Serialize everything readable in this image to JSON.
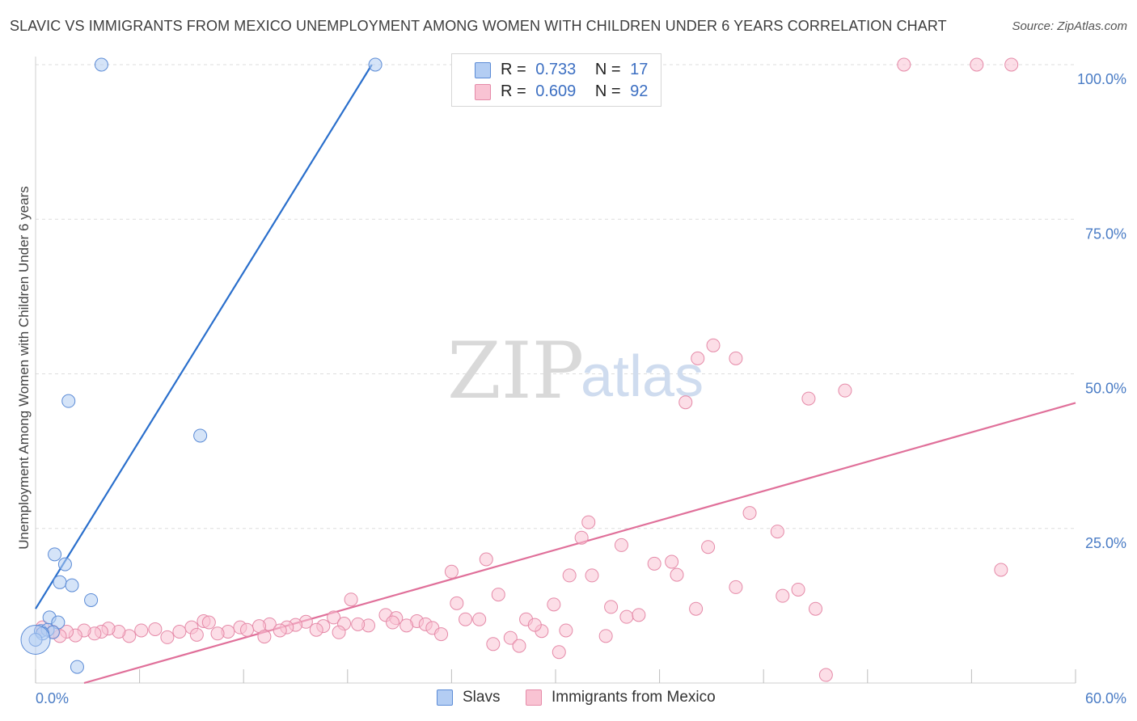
{
  "title": "SLAVIC VS IMMIGRANTS FROM MEXICO UNEMPLOYMENT AMONG WOMEN WITH CHILDREN UNDER 6 YEARS CORRELATION CHART",
  "source": "Source: ZipAtlas.com",
  "watermark": {
    "zip": "ZIP",
    "atlas": "atlas"
  },
  "legend": {
    "r_label": "R =",
    "n_label": "N =",
    "items": [
      {
        "name": "Slavs",
        "r": "0.733",
        "n": "17"
      },
      {
        "name": "Immigrants from Mexico",
        "r": "0.609",
        "n": "92"
      }
    ]
  },
  "colors": {
    "slavs_fill": "#b3cdf3",
    "slavs_stroke": "#5b8bd6",
    "slavs_line": "#2a6fcc",
    "mexico_fill": "#f9c3d3",
    "mexico_stroke": "#e58aa8",
    "mexico_line": "#e0709a",
    "grid": "#dddddd",
    "tick_label": "#4a7cc5"
  },
  "chart_data": {
    "type": "scatter",
    "title": "SLAVIC VS IMMIGRANTS FROM MEXICO UNEMPLOYMENT AMONG WOMEN WITH CHILDREN UNDER 6 YEARS CORRELATION CHART",
    "xlabel": "",
    "ylabel": "Unemployment Among Women with Children Under 6 years",
    "xlim": [
      0,
      60
    ],
    "ylim": [
      0,
      100
    ],
    "x_tick_labels": [
      {
        "value": 0,
        "label": "0.0%"
      },
      {
        "value": 60,
        "label": "60.0%"
      }
    ],
    "y_tick_labels": [
      {
        "value": 100,
        "label": "100.0%"
      },
      {
        "value": 75,
        "label": "75.0%"
      },
      {
        "value": 50,
        "label": "50.0%"
      },
      {
        "value": 25,
        "label": "25.0%"
      }
    ],
    "x_minor_ticks": [
      0,
      6,
      12,
      18,
      24,
      30,
      36,
      42,
      48,
      54,
      60
    ],
    "y_grid": [
      100,
      75,
      50,
      25
    ],
    "series": [
      {
        "name": "Slavs",
        "points": [
          [
            3.8,
            100
          ],
          [
            19.6,
            100
          ],
          [
            1.9,
            45.6
          ],
          [
            9.5,
            40
          ],
          [
            1.1,
            20.8
          ],
          [
            1.7,
            19.2
          ],
          [
            1.4,
            16.3
          ],
          [
            2.1,
            15.8
          ],
          [
            3.2,
            13.4
          ],
          [
            0.8,
            10.6
          ],
          [
            1.3,
            9.8
          ],
          [
            0.3,
            8.4
          ],
          [
            0.7,
            8.6
          ],
          [
            1.0,
            8.2
          ],
          [
            0.4,
            8.0
          ],
          [
            2.4,
            2.6
          ],
          [
            0.0,
            7.0
          ]
        ],
        "trend": {
          "x": [
            0,
            19.4
          ],
          "y": [
            12,
            100
          ]
        }
      },
      {
        "name": "Immigrants from Mexico",
        "points": [
          [
            50.1,
            100
          ],
          [
            54.3,
            100
          ],
          [
            56.3,
            100
          ],
          [
            39.1,
            54.6
          ],
          [
            38.2,
            52.5
          ],
          [
            40.4,
            52.5
          ],
          [
            37.5,
            45.4
          ],
          [
            44.6,
            46.0
          ],
          [
            46.7,
            47.3
          ],
          [
            41.2,
            27.5
          ],
          [
            31.9,
            26.0
          ],
          [
            31.5,
            23.5
          ],
          [
            42.8,
            24.5
          ],
          [
            33.8,
            22.3
          ],
          [
            38.8,
            22.0
          ],
          [
            26.0,
            20.0
          ],
          [
            35.7,
            19.3
          ],
          [
            36.7,
            19.6
          ],
          [
            37.0,
            17.5
          ],
          [
            30.8,
            17.4
          ],
          [
            32.1,
            17.4
          ],
          [
            24.0,
            18.0
          ],
          [
            55.7,
            18.3
          ],
          [
            40.4,
            15.5
          ],
          [
            44.0,
            15.1
          ],
          [
            43.1,
            14.1
          ],
          [
            26.7,
            14.3
          ],
          [
            18.2,
            13.5
          ],
          [
            24.3,
            12.9
          ],
          [
            29.9,
            12.7
          ],
          [
            33.2,
            12.3
          ],
          [
            38.1,
            12.0
          ],
          [
            45.0,
            12.0
          ],
          [
            28.3,
            10.3
          ],
          [
            17.2,
            10.6
          ],
          [
            20.2,
            11.0
          ],
          [
            20.8,
            10.5
          ],
          [
            34.1,
            10.7
          ],
          [
            34.8,
            11.0
          ],
          [
            24.8,
            10.3
          ],
          [
            25.6,
            10.3
          ],
          [
            22.0,
            10.0
          ],
          [
            22.5,
            9.5
          ],
          [
            21.4,
            9.3
          ],
          [
            19.2,
            9.3
          ],
          [
            18.6,
            9.5
          ],
          [
            17.8,
            9.6
          ],
          [
            16.6,
            9.2
          ],
          [
            15.6,
            9.9
          ],
          [
            15.0,
            9.4
          ],
          [
            14.5,
            9.0
          ],
          [
            13.5,
            9.5
          ],
          [
            12.9,
            9.2
          ],
          [
            11.8,
            9.0
          ],
          [
            11.1,
            8.3
          ],
          [
            10.5,
            8.0
          ],
          [
            9.7,
            10.0
          ],
          [
            9.0,
            9.0
          ],
          [
            8.3,
            8.3
          ],
          [
            7.6,
            7.4
          ],
          [
            6.9,
            8.7
          ],
          [
            6.1,
            8.5
          ],
          [
            5.4,
            7.6
          ],
          [
            4.8,
            8.3
          ],
          [
            4.2,
            8.8
          ],
          [
            3.8,
            8.3
          ],
          [
            3.4,
            8.0
          ],
          [
            2.8,
            8.5
          ],
          [
            2.3,
            7.7
          ],
          [
            1.8,
            8.3
          ],
          [
            1.4,
            7.6
          ],
          [
            1.0,
            8.3
          ],
          [
            0.4,
            9.0
          ],
          [
            9.3,
            7.8
          ],
          [
            10.0,
            9.8
          ],
          [
            12.2,
            8.6
          ],
          [
            13.2,
            7.5
          ],
          [
            14.1,
            8.5
          ],
          [
            16.2,
            8.6
          ],
          [
            17.5,
            8.2
          ],
          [
            20.6,
            9.8
          ],
          [
            22.9,
            8.9
          ],
          [
            23.4,
            7.9
          ],
          [
            26.4,
            6.3
          ],
          [
            27.4,
            7.3
          ],
          [
            27.9,
            6.0
          ],
          [
            29.2,
            8.4
          ],
          [
            30.2,
            5.0
          ],
          [
            32.9,
            7.6
          ],
          [
            28.8,
            9.4
          ],
          [
            30.6,
            8.5
          ],
          [
            45.6,
            1.3
          ]
        ],
        "trend": {
          "x": [
            2.8,
            60
          ],
          "y": [
            0,
            45.3
          ]
        }
      }
    ]
  }
}
